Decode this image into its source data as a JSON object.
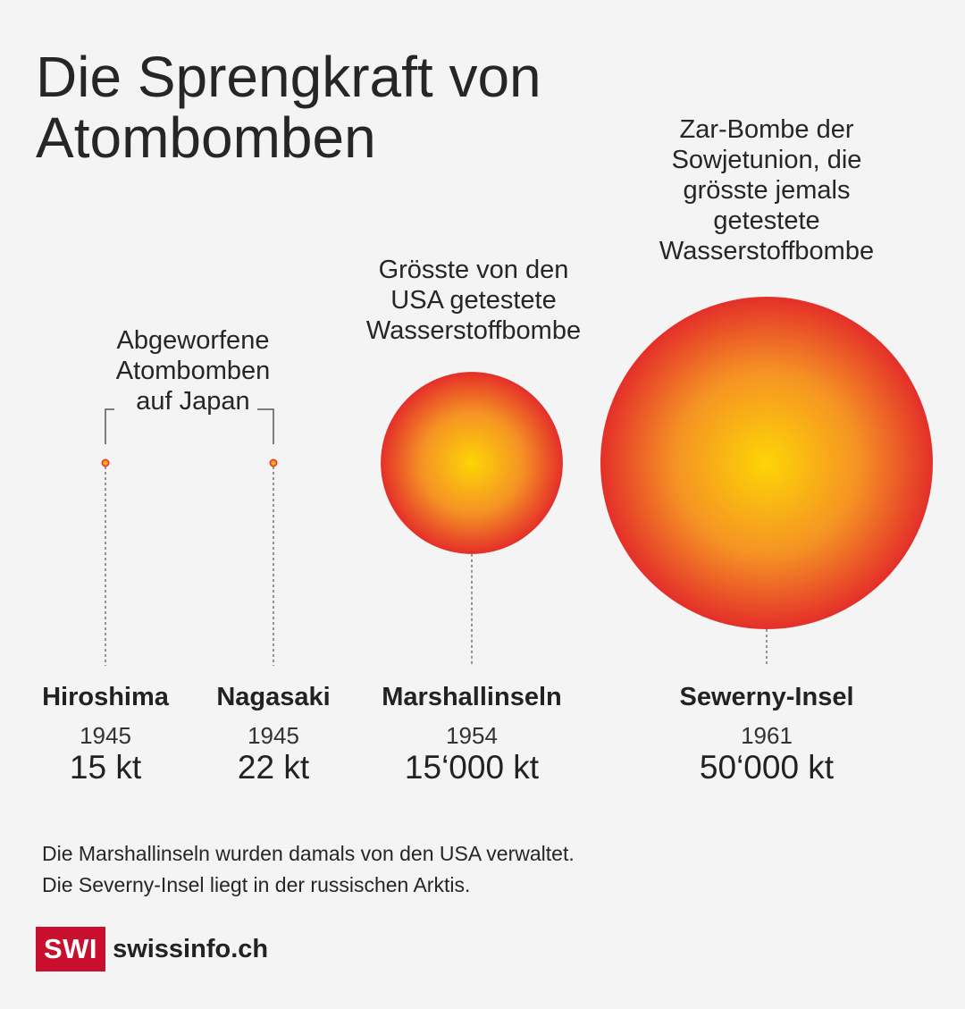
{
  "title_lines": [
    "Die Sprengkraft von",
    "Atombomben"
  ],
  "annotations": {
    "japan": [
      "Abgeworfene",
      "Atombomben",
      "auf Japan"
    ],
    "usa": [
      "Grösste von den",
      "USA getestete",
      "Wasserstoffbombe"
    ],
    "tsar": [
      "Zar-Bombe der",
      "Sowjetunion, die",
      "grösste jemals",
      "getestete",
      "Wasserstoffbombe"
    ]
  },
  "colors": {
    "center": "#fdd506",
    "mid": "#f59324",
    "edge": "#e42f2a",
    "background": "#f4f4f4"
  },
  "chart_data": {
    "type": "bubble",
    "unit": "kt",
    "categories": [
      "Hiroshima",
      "Nagasaki",
      "Marshallinseln",
      "Sewerny-Insel"
    ],
    "years": [
      "1945",
      "1945",
      "1954",
      "1961"
    ],
    "values": [
      15,
      22,
      15000,
      50000
    ],
    "value_labels": [
      "15 kt",
      "22 kt",
      "15‘000 kt",
      "50‘000 kt"
    ]
  },
  "notes": [
    "Die Marshallinseln wurden damals von den USA verwaltet.",
    "Die Severny-Insel liegt in der russischen Arktis."
  ],
  "logo": {
    "badge": "SWI",
    "text": "swissinfo.ch"
  }
}
